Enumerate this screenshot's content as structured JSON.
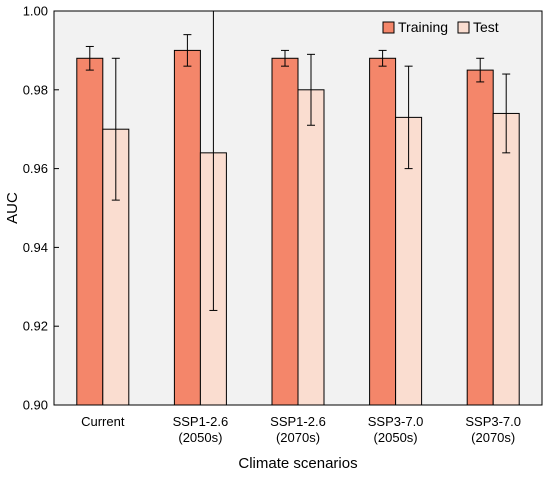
{
  "chart_data": {
    "type": "bar",
    "categories": [
      [
        "Current"
      ],
      [
        "SSP1-2.6",
        "(2050s)"
      ],
      [
        "SSP1-2.6",
        "(2070s)"
      ],
      [
        "SSP3-7.0",
        "(2050s)"
      ],
      [
        "SSP3-7.0",
        "(2070s)"
      ]
    ],
    "series": [
      {
        "name": "Training",
        "values": [
          0.988,
          0.99,
          0.988,
          0.988,
          0.985
        ],
        "error": [
          0.003,
          0.004,
          0.002,
          0.002,
          0.003
        ],
        "color": "#F4866A"
      },
      {
        "name": "Test",
        "values": [
          0.97,
          0.964,
          0.98,
          0.973,
          0.974
        ],
        "error": [
          0.018,
          0.04,
          0.009,
          0.013,
          0.01
        ],
        "color": "#FADDD0"
      }
    ],
    "xlabel": "Climate scenarios",
    "ylabel": "AUC",
    "ylim": [
      0.9,
      1.0
    ],
    "yticks": [
      "0.90",
      "0.92",
      "0.94",
      "0.96",
      "0.98",
      "1.00"
    ],
    "grid": false,
    "legend_position": "top-right",
    "colors": {
      "plot_background": "#F2F2F2",
      "axis": "#000000"
    }
  }
}
